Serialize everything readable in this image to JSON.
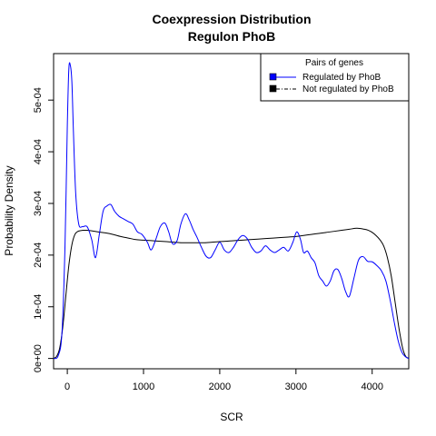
{
  "chart_data": {
    "type": "line",
    "title_line1": "Coexpression Distribution",
    "title_line2": "Regulon PhoB",
    "xlabel": "SCR",
    "ylabel": "Probability Density",
    "xlim": [
      -180,
      4480
    ],
    "ylim": [
      -2e-05,
      0.00059
    ],
    "x_ticks": [
      0,
      1000,
      2000,
      3000,
      4000
    ],
    "x_tick_labels": [
      "0",
      "1000",
      "2000",
      "3000",
      "4000"
    ],
    "y_ticks": [
      0,
      0.0001,
      0.0002,
      0.0003,
      0.0004,
      0.0005
    ],
    "y_tick_labels": [
      "0e+00",
      "1e-04",
      "2e-04",
      "3e-04",
      "4e-04",
      "5e-04"
    ],
    "grid": false,
    "legend": {
      "title": "Pairs of genes",
      "placement": "top-right",
      "items": [
        {
          "label": "Regulated by  PhoB",
          "color": "#0000ff",
          "line": "solid"
        },
        {
          "label": "Not regulated by  PhoB",
          "color": "#000000",
          "line": "dash-dot"
        }
      ]
    },
    "series": [
      {
        "name": "Regulated by  PhoB",
        "color": "#0000ff",
        "x": [
          -180,
          -120,
          -70,
          -30,
          0,
          20,
          40,
          60,
          80,
          110,
          150,
          200,
          260,
          320,
          370,
          420,
          470,
          520,
          570,
          620,
          680,
          740,
          800,
          860,
          920,
          980,
          1050,
          1100,
          1160,
          1220,
          1280,
          1330,
          1380,
          1440,
          1490,
          1550,
          1600,
          1650,
          1700,
          1760,
          1820,
          1880,
          1940,
          2000,
          2060,
          2120,
          2180,
          2240,
          2300,
          2360,
          2420,
          2480,
          2540,
          2600,
          2660,
          2720,
          2780,
          2840,
          2900,
          2960,
          3010,
          3060,
          3100,
          3150,
          3200,
          3250,
          3300,
          3350,
          3400,
          3450,
          3500,
          3550,
          3600,
          3650,
          3700,
          3760,
          3820,
          3880,
          3940,
          4000,
          4060,
          4120,
          4180,
          4240,
          4290,
          4340,
          4390,
          4440,
          4480
        ],
        "y": [
          0.0,
          5e-06,
          5e-05,
          0.00022,
          0.00045,
          0.00056,
          0.000567,
          0.000535,
          0.00044,
          0.00032,
          0.00026,
          0.000255,
          0.000255,
          0.00023,
          0.000195,
          0.00024,
          0.000285,
          0.000295,
          0.000298,
          0.000285,
          0.000275,
          0.00027,
          0.000265,
          0.00026,
          0.000245,
          0.00024,
          0.000225,
          0.00021,
          0.00023,
          0.000255,
          0.000262,
          0.000245,
          0.000222,
          0.000228,
          0.00026,
          0.00028,
          0.000268,
          0.00025,
          0.000235,
          0.000215,
          0.000198,
          0.000195,
          0.00021,
          0.000225,
          0.00021,
          0.000205,
          0.000215,
          0.00023,
          0.000238,
          0.000232,
          0.000215,
          0.000205,
          0.000208,
          0.000218,
          0.00021,
          0.000205,
          0.00021,
          0.000215,
          0.000208,
          0.000225,
          0.000245,
          0.00023,
          0.000205,
          0.000208,
          0.000195,
          0.000185,
          0.00016,
          0.00015,
          0.00014,
          0.00015,
          0.00017,
          0.000172,
          0.000155,
          0.00013,
          0.00012,
          0.000155,
          0.00019,
          0.000197,
          0.000188,
          0.000187,
          0.00018,
          0.00017,
          0.00015,
          0.00011,
          7e-05,
          3.5e-05,
          1.2e-05,
          3e-06,
          0.0
        ]
      },
      {
        "name": "Not regulated by  PhoB",
        "color": "#000000",
        "x": [
          -180,
          -140,
          -100,
          -60,
          -20,
          20,
          60,
          100,
          140,
          200,
          260,
          320,
          400,
          500,
          600,
          700,
          800,
          900,
          1000,
          1100,
          1200,
          1300,
          1400,
          1500,
          1600,
          1700,
          1800,
          1900,
          2000,
          2100,
          2200,
          2300,
          2400,
          2500,
          2600,
          2700,
          2800,
          2900,
          3000,
          3100,
          3200,
          3300,
          3400,
          3500,
          3600,
          3700,
          3800,
          3900,
          3950,
          4000,
          4050,
          4100,
          4150,
          4200,
          4250,
          4300,
          4350,
          4400,
          4440,
          4480
        ],
        "y": [
          0.0,
          4e-06,
          2e-05,
          6e-05,
          0.00012,
          0.00018,
          0.00022,
          0.00024,
          0.000246,
          0.000248,
          0.000248,
          0.000247,
          0.000245,
          0.000243,
          0.00024,
          0.000236,
          0.000233,
          0.00023,
          0.000229,
          0.000228,
          0.000227,
          0.000226,
          0.000225,
          0.000224,
          0.000224,
          0.000224,
          0.000224,
          0.000225,
          0.000226,
          0.000227,
          0.000228,
          0.000229,
          0.00023,
          0.000231,
          0.000232,
          0.000233,
          0.000234,
          0.000235,
          0.000236,
          0.000238,
          0.00024,
          0.000242,
          0.000244,
          0.000246,
          0.000248,
          0.00025,
          0.000252,
          0.00025,
          0.000248,
          0.000244,
          0.000238,
          0.00023,
          0.000218,
          0.000195,
          0.00016,
          0.00011,
          6e-05,
          2e-05,
          4e-06,
          0.0
        ]
      }
    ]
  }
}
